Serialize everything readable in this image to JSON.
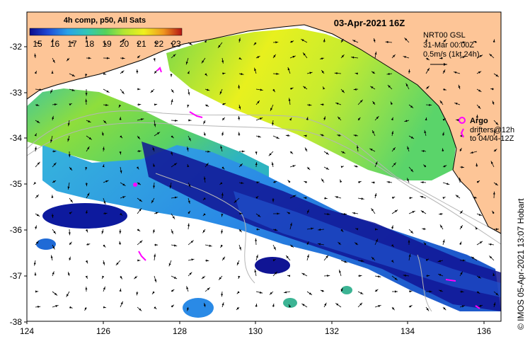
{
  "map": {
    "colorbar_label": "4h comp, p50, All Sats",
    "colorbar_ticks": [
      "15",
      "16",
      "17",
      "18",
      "19",
      "20",
      "21",
      "22",
      "23"
    ],
    "date_label": "03-Apr-2021 16Z",
    "current_info": [
      "NRT00 GSL",
      "31-Mar 00:00Z",
      "0.5m/s (1kt 24h)"
    ],
    "argo_label": "Argo",
    "drifters_label": [
      "drifters@12h",
      "to 04/04-12Z"
    ],
    "credit": "© IMOS 05-Apr-2021 13:07 Hobart",
    "x_ticks": [
      "124",
      "126",
      "128",
      "130",
      "132",
      "134",
      "136"
    ],
    "y_ticks": [
      "-32",
      "-33",
      "-34",
      "-35",
      "-36",
      "-37",
      "-38"
    ],
    "colors": {
      "land": "#fdc597",
      "ocean_missing": "#ffffff",
      "argo_marker": "#ff00ff",
      "bathymetry": "#b5b5b5"
    }
  }
}
